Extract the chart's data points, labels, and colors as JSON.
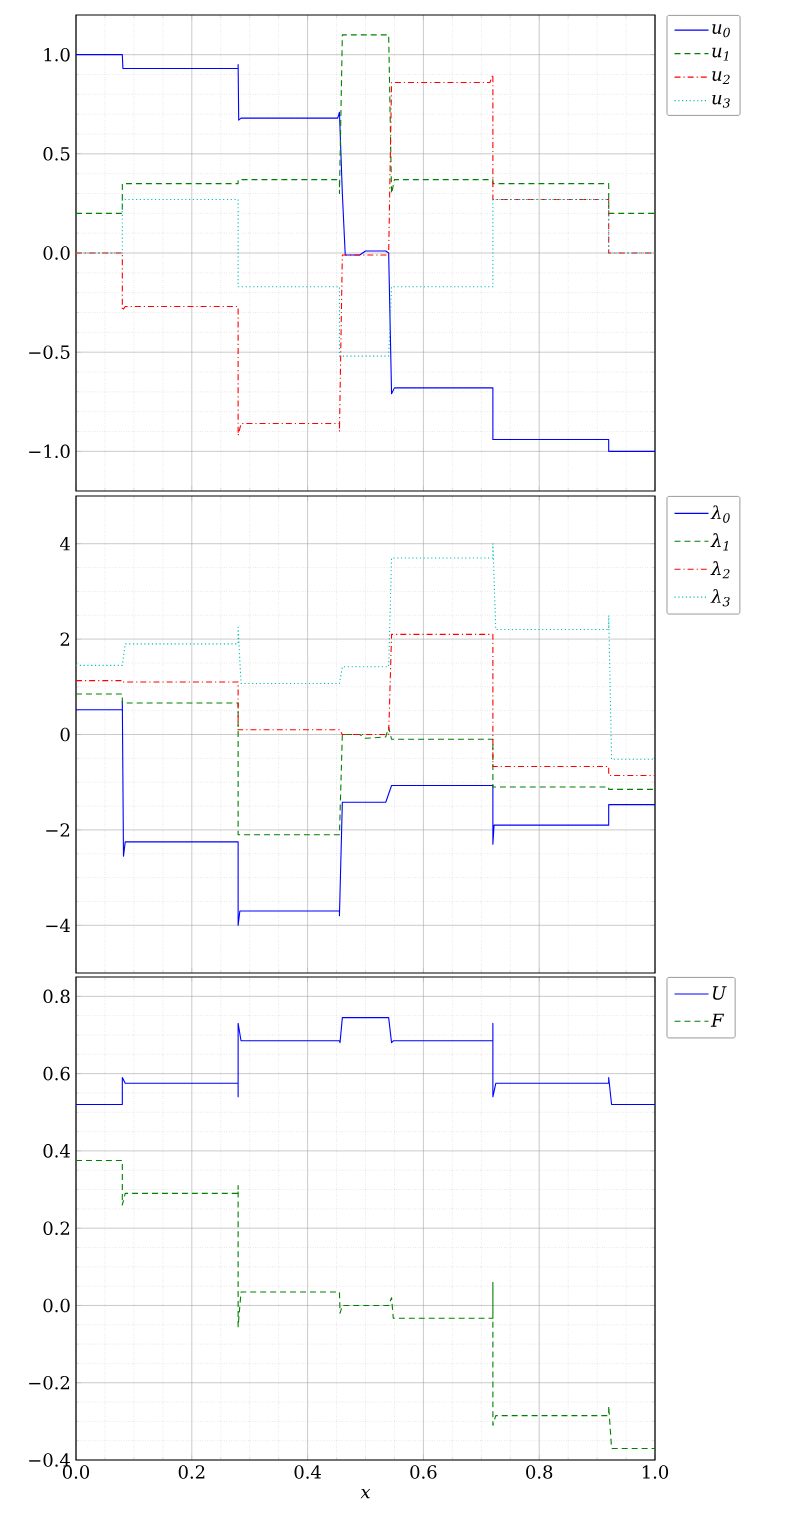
{
  "chart_data": [
    {
      "type": "line",
      "xlim": [
        0,
        1
      ],
      "ylim": [
        -1.2,
        1.2
      ],
      "xticks": [
        {
          "value": 0,
          "label": null
        },
        {
          "value": 0.2,
          "label": null
        },
        {
          "value": 0.4,
          "label": null
        },
        {
          "value": 0.6,
          "label": null
        },
        {
          "value": 0.8,
          "label": null
        },
        {
          "value": 1,
          "label": null
        }
      ],
      "yticks": [
        {
          "value": -1,
          "label": "−1.0"
        },
        {
          "value": -0.5,
          "label": "−0.5"
        },
        {
          "value": 0,
          "label": "0.0"
        },
        {
          "value": 0.5,
          "label": "0.5"
        },
        {
          "value": 1,
          "label": "1.0"
        }
      ],
      "tick_labels": "y",
      "grid": true,
      "legend": "right",
      "series": [
        {
          "name": "u$_{0}$",
          "color": "#0000ff",
          "line_style": "solid",
          "x": [
            0,
            0.08,
            0.081,
            0.28,
            0.28,
            0.281,
            0.285,
            0.452,
            0.455,
            0.46,
            0.465,
            0.49,
            0.5,
            0.535,
            0.54,
            0.545,
            0.55,
            0.72,
            0.72,
            0.92,
            0.92,
            1
          ],
          "values": [
            1,
            1,
            0.93,
            0.93,
            0.95,
            0.67,
            0.68,
            0.68,
            0.71,
            0.3,
            -0.01,
            -0.01,
            0.01,
            0.01,
            0,
            -0.71,
            -0.68,
            -0.68,
            -0.94,
            -0.94,
            -1,
            -1
          ]
        },
        {
          "name": "u$_{1}$",
          "color": "#008000",
          "line_style": "dashed",
          "x": [
            0,
            0.08,
            0.08,
            0.28,
            0.28,
            0.455,
            0.455,
            0.46,
            0.54,
            0.545,
            0.55,
            0.72,
            0.72,
            0.92,
            0.92,
            1
          ],
          "values": [
            0.2,
            0.2,
            0.35,
            0.35,
            0.37,
            0.37,
            0.3,
            1.1,
            1.1,
            0.3,
            0.37,
            0.37,
            0.35,
            0.35,
            0.2,
            0.2
          ]
        },
        {
          "name": "u$_{2}$",
          "color": "#ff0000",
          "line_style": "dashdot",
          "x": [
            0,
            0.08,
            0.08,
            0.085,
            0.28,
            0.28,
            0.285,
            0.455,
            0.455,
            0.46,
            0.54,
            0.545,
            0.715,
            0.72,
            0.72,
            0.92,
            0.92,
            1
          ],
          "values": [
            0,
            0,
            -0.29,
            -0.27,
            -0.27,
            -0.92,
            -0.86,
            -0.86,
            -0.9,
            -0.01,
            -0.01,
            0.86,
            0.86,
            0.9,
            0.27,
            0.27,
            0,
            0
          ]
        },
        {
          "name": "u$_{3}$",
          "color": "#00bfbf",
          "line_style": "dotted",
          "x": [
            0,
            0.08,
            0.08,
            0.28,
            0.28,
            0.455,
            0.455,
            0.54,
            0.545,
            0.72,
            0.72,
            0.92,
            0.92,
            1
          ],
          "values": [
            0,
            0,
            0.27,
            0.27,
            -0.17,
            -0.17,
            -0.52,
            -0.52,
            -0.17,
            -0.17,
            0.27,
            0.27,
            0,
            0
          ]
        }
      ]
    },
    {
      "type": "line",
      "xlim": [
        0,
        1
      ],
      "ylim": [
        -5,
        5
      ],
      "xticks": [
        {
          "value": 0,
          "label": null
        },
        {
          "value": 0.2,
          "label": null
        },
        {
          "value": 0.4,
          "label": null
        },
        {
          "value": 0.6,
          "label": null
        },
        {
          "value": 0.8,
          "label": null
        },
        {
          "value": 1,
          "label": null
        }
      ],
      "yticks": [
        {
          "value": -4,
          "label": "−4"
        },
        {
          "value": -2,
          "label": "−2"
        },
        0,
        2,
        4
      ],
      "tick_labels": "y",
      "grid": true,
      "legend": "right",
      "series": [
        {
          "name": "λ$_{0}$",
          "color": "#0000ff",
          "line_style": "solid",
          "x": [
            0,
            0.08,
            0.08,
            0.082,
            0.085,
            0.28,
            0.28,
            0.283,
            0.455,
            0.455,
            0.46,
            0.535,
            0.545,
            0.72,
            0.72,
            0.722,
            0.92,
            0.92,
            1
          ],
          "values": [
            0.52,
            0.52,
            0.7,
            -2.55,
            -2.25,
            -2.25,
            -4.0,
            -3.7,
            -3.7,
            -3.8,
            -1.42,
            -1.42,
            -1.07,
            -1.07,
            -2.3,
            -1.9,
            -1.9,
            -1.47,
            -1.47
          ]
        },
        {
          "name": "λ$_{1}$",
          "color": "#008000",
          "line_style": "dashed",
          "x": [
            0,
            0.08,
            0.08,
            0.28,
            0.28,
            0.455,
            0.46,
            0.49,
            0.5,
            0.535,
            0.54,
            0.545,
            0.72,
            0.72,
            0.92,
            0.92,
            1
          ],
          "values": [
            0.85,
            0.85,
            0.66,
            0.66,
            -2.1,
            -2.1,
            0,
            0,
            -0.08,
            -0.05,
            0.15,
            -0.1,
            -0.1,
            -1.1,
            -1.1,
            -1.15,
            -1.15
          ]
        },
        {
          "name": "λ$_{2}$",
          "color": "#ff0000",
          "line_style": "dashdot",
          "x": [
            0,
            0.08,
            0.08,
            0.28,
            0.28,
            0.455,
            0.46,
            0.54,
            0.545,
            0.72,
            0.72,
            0.92,
            0.92,
            1
          ],
          "values": [
            1.13,
            1.13,
            1.1,
            1.1,
            0.1,
            0.1,
            0,
            0,
            2.1,
            2.1,
            -0.67,
            -0.67,
            -0.86,
            -0.86
          ]
        },
        {
          "name": "λ$_{3}$",
          "color": "#00bfbf",
          "line_style": "dotted",
          "x": [
            0,
            0.08,
            0.085,
            0.28,
            0.28,
            0.285,
            0.455,
            0.46,
            0.54,
            0.545,
            0.72,
            0.72,
            0.725,
            0.92,
            0.92,
            0.925,
            1
          ],
          "values": [
            1.45,
            1.45,
            1.9,
            1.9,
            2.25,
            1.07,
            1.07,
            1.42,
            1.42,
            3.7,
            3.7,
            4.0,
            2.2,
            2.2,
            2.5,
            -0.52,
            -0.52
          ]
        }
      ]
    },
    {
      "type": "line",
      "xlabel": "x",
      "xlim": [
        0,
        1
      ],
      "ylim": [
        -0.4,
        0.85
      ],
      "xticks": [
        {
          "value": 0,
          "label": "0.0"
        },
        {
          "value": 0.2,
          "label": "0.2"
        },
        {
          "value": 0.4,
          "label": "0.4"
        },
        {
          "value": 0.6,
          "label": "0.6"
        },
        {
          "value": 0.8,
          "label": "0.8"
        },
        {
          "value": 1,
          "label": "1.0"
        }
      ],
      "yticks": [
        {
          "value": -0.4,
          "label": "−0.4"
        },
        {
          "value": -0.2,
          "label": "−0.2"
        },
        {
          "value": 0,
          "label": "0.0"
        },
        {
          "value": 0.2,
          "label": "0.2"
        },
        {
          "value": 0.4,
          "label": "0.4"
        },
        {
          "value": 0.6,
          "label": "0.6"
        },
        {
          "value": 0.8,
          "label": "0.8"
        }
      ],
      "grid": true,
      "legend": "right",
      "series": [
        {
          "name": "U",
          "color": "#0000ff",
          "line_style": "solid",
          "x": [
            0,
            0.08,
            0.08,
            0.085,
            0.28,
            0.28,
            0.28,
            0.285,
            0.455,
            0.456,
            0.46,
            0.54,
            0.545,
            0.548,
            0.72,
            0.72,
            0.72,
            0.725,
            0.92,
            0.92,
            0.925,
            1
          ],
          "values": [
            0.52,
            0.52,
            0.59,
            0.575,
            0.575,
            0.54,
            0.73,
            0.685,
            0.685,
            0.68,
            0.745,
            0.745,
            0.68,
            0.685,
            0.685,
            0.73,
            0.54,
            0.575,
            0.575,
            0.59,
            0.52,
            0.52
          ]
        },
        {
          "name": "F",
          "color": "#008000",
          "line_style": "dashed",
          "x": [
            0,
            0.08,
            0.08,
            0.085,
            0.28,
            0.28,
            0.28,
            0.285,
            0.455,
            0.456,
            0.46,
            0.54,
            0.545,
            0.548,
            0.72,
            0.72,
            0.72,
            0.725,
            0.92,
            0.92,
            0.925,
            1
          ],
          "values": [
            0.375,
            0.375,
            0.26,
            0.29,
            0.29,
            0.31,
            -0.055,
            0.035,
            0.035,
            -0.02,
            0,
            0,
            0.02,
            -0.033,
            -0.033,
            0.06,
            -0.31,
            -0.285,
            -0.285,
            -0.26,
            -0.37,
            -0.37
          ]
        }
      ]
    }
  ]
}
